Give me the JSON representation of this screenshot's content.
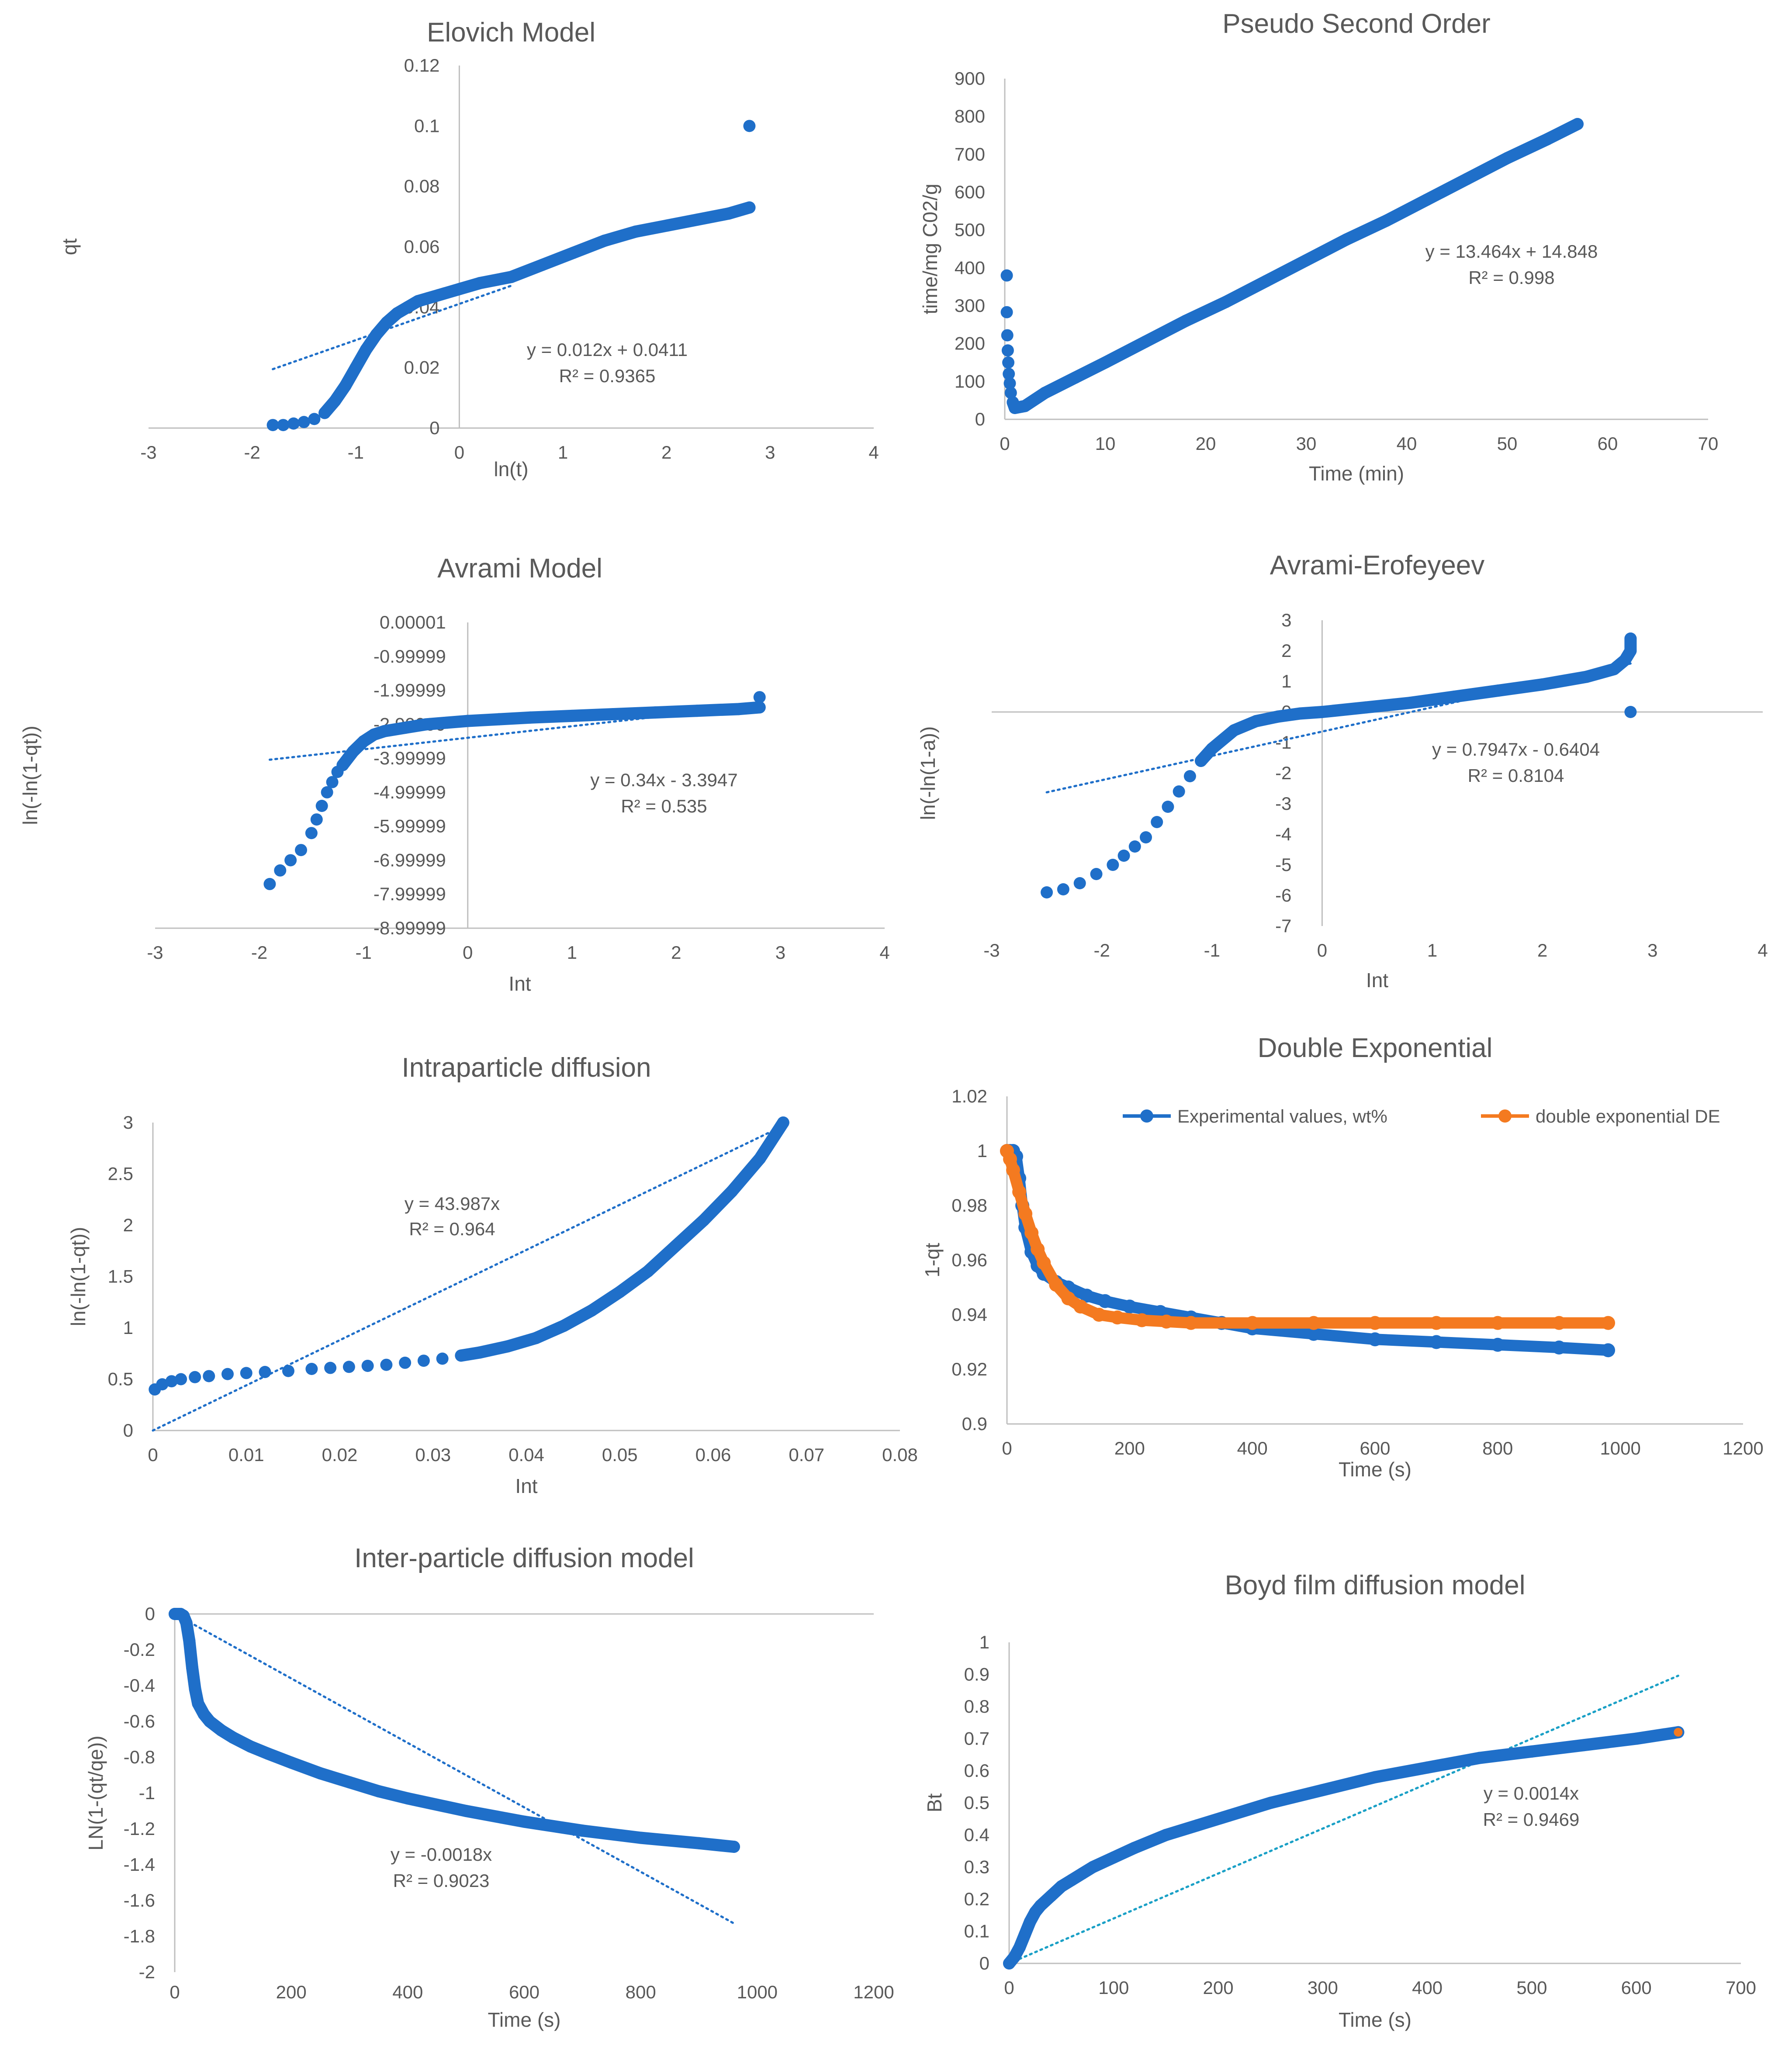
{
  "chart_data": [
    {
      "id": "elovich",
      "type": "scatter",
      "title": "Elovich Model",
      "xlabel": "ln(t)",
      "ylabel": "qt",
      "xlim": [
        -3,
        4
      ],
      "ylim": [
        0,
        0.12
      ],
      "xticks": [
        -3,
        -2,
        -1,
        0,
        1,
        2,
        3,
        4
      ],
      "xtick_labels": [
        "-3",
        "-2",
        "-1",
        "0",
        "1",
        "2",
        "3",
        "4"
      ],
      "yticks": [
        0,
        0.02,
        0.04,
        0.06,
        0.08,
        0.1,
        0.12
      ],
      "ytick_labels": [
        "0",
        "0.02",
        "0.04",
        "0.06",
        "0.08",
        "0.1",
        "0.12"
      ],
      "series": [
        {
          "name": "data",
          "color": "#1f6fc9",
          "x": [
            -1.8,
            -1.7,
            -1.6,
            -1.5,
            -1.4,
            -1.3,
            -1.2,
            -1.1,
            -1.0,
            -0.9,
            -0.8,
            -0.7,
            -0.6,
            -0.5,
            -0.4,
            -0.3,
            -0.2,
            0.0,
            0.2,
            0.5,
            0.8,
            1.1,
            1.4,
            1.7,
            2.0,
            2.3,
            2.6,
            2.8,
            2.8
          ],
          "y": [
            0.001,
            0.001,
            0.0015,
            0.002,
            0.003,
            0.005,
            0.009,
            0.014,
            0.02,
            0.026,
            0.031,
            0.035,
            0.038,
            0.04,
            0.042,
            0.043,
            0.044,
            0.046,
            0.048,
            0.05,
            0.054,
            0.058,
            0.062,
            0.065,
            0.067,
            0.069,
            0.071,
            0.073,
            0.1
          ]
        }
      ],
      "trendline": {
        "slope": 0.012,
        "intercept": 0.0411,
        "x_range": [
          -1.8,
          0.5
        ],
        "color": "#1f6fc9"
      },
      "annotation": [
        "y = 0.012x + 0.0411",
        "R² = 0.9365"
      ]
    },
    {
      "id": "pso",
      "type": "scatter",
      "title": "Pseudo Second Order",
      "xlabel": "Time (min)",
      "ylabel": "time/mg C02/g",
      "xlim": [
        0,
        70
      ],
      "ylim": [
        0,
        900
      ],
      "xticks": [
        0,
        10,
        20,
        30,
        40,
        50,
        60,
        70
      ],
      "xtick_labels": [
        "0",
        "10",
        "20",
        "30",
        "40",
        "50",
        "60",
        "70"
      ],
      "yticks": [
        0,
        100,
        200,
        300,
        400,
        500,
        600,
        700,
        800,
        900
      ],
      "ytick_labels": [
        "0",
        "100",
        "200",
        "300",
        "400",
        "500",
        "600",
        "700",
        "800",
        "900"
      ],
      "series": [
        {
          "name": "data",
          "color": "#1f6fc9",
          "x": [
            0.2,
            0.2,
            0.25,
            0.3,
            0.35,
            0.4,
            0.5,
            0.6,
            0.8,
            1,
            2,
            4,
            7,
            10,
            14,
            18,
            22,
            26,
            30,
            34,
            38,
            42,
            46,
            50,
            54,
            57
          ],
          "y": [
            380,
            283,
            222,
            182,
            150,
            120,
            95,
            70,
            45,
            30,
            35,
            70,
            110,
            150,
            205,
            260,
            310,
            365,
            420,
            475,
            525,
            580,
            635,
            690,
            740,
            780
          ]
        }
      ],
      "trendline": null,
      "annotation": [
        "y = 13.464x + 14.848",
        "R² = 0.998"
      ]
    },
    {
      "id": "avrami",
      "type": "scatter",
      "title": "Avrami Model",
      "xlabel": "Int",
      "ylabel": "ln(-ln(1-qt))",
      "xlim": [
        -3,
        4
      ],
      "ylim": [
        -8.99999,
        1e-05
      ],
      "xticks": [
        -3,
        -2,
        -1,
        0,
        1,
        2,
        3,
        4
      ],
      "xtick_labels": [
        "-3",
        "-2",
        "-1",
        "0",
        "1",
        "2",
        "3",
        "4"
      ],
      "yticks": [
        1e-05,
        -0.99999,
        -1.99999,
        -2.99999,
        -3.99999,
        -4.99999,
        -5.99999,
        -6.99999,
        -7.99999,
        -8.99999
      ],
      "ytick_labels": [
        "0.00001",
        "-0.99999",
        "-1.99999",
        "-2.99999",
        "-3.99999",
        "-4.99999",
        "-5.99999",
        "-6.99999",
        "-7.99999",
        "-8.99999"
      ],
      "series": [
        {
          "name": "data",
          "color": "#1f6fc9",
          "x": [
            -1.9,
            -1.8,
            -1.7,
            -1.6,
            -1.5,
            -1.45,
            -1.4,
            -1.35,
            -1.3,
            -1.25,
            -1.2,
            -1.1,
            -1.0,
            -0.9,
            -0.8,
            -0.6,
            -0.4,
            -0.2,
            0.0,
            0.3,
            0.6,
            1.0,
            1.4,
            1.8,
            2.2,
            2.6,
            2.8,
            2.8
          ],
          "y": [
            -7.7,
            -7.3,
            -7.0,
            -6.7,
            -6.2,
            -5.8,
            -5.4,
            -5.0,
            -4.7,
            -4.4,
            -4.2,
            -3.8,
            -3.5,
            -3.3,
            -3.2,
            -3.1,
            -3.0,
            -2.95,
            -2.9,
            -2.85,
            -2.8,
            -2.75,
            -2.7,
            -2.65,
            -2.6,
            -2.55,
            -2.5,
            -2.2
          ]
        }
      ],
      "trendline": {
        "slope": 0.34,
        "intercept": -3.3947,
        "x_range": [
          -1.9,
          2.8
        ],
        "color": "#1f6fc9"
      },
      "annotation": [
        "y = 0.34x - 3.3947",
        "R² = 0.535"
      ]
    },
    {
      "id": "avrami_erofeyeev",
      "type": "scatter",
      "title": "Avrami-Erofeyeev",
      "xlabel": "Int",
      "ylabel": "ln(-ln(1-a))",
      "xlim": [
        -3,
        4
      ],
      "ylim": [
        -7,
        3
      ],
      "xticks": [
        -3,
        -2,
        -1,
        0,
        1,
        2,
        3,
        4
      ],
      "xtick_labels": [
        "-3",
        "-2",
        "-1",
        "0",
        "1",
        "2",
        "3",
        "4"
      ],
      "yticks": [
        -7,
        -6,
        -5,
        -4,
        -3,
        -2,
        -1,
        0,
        1,
        2,
        3
      ],
      "ytick_labels": [
        "-7",
        "-6",
        "-5",
        "-4",
        "-3",
        "-2",
        "-1",
        "0",
        "1",
        "2",
        "3"
      ],
      "series": [
        {
          "name": "data",
          "color": "#1f6fc9",
          "x": [
            -2.5,
            -2.35,
            -2.2,
            -2.05,
            -1.9,
            -1.8,
            -1.7,
            -1.6,
            -1.5,
            -1.4,
            -1.3,
            -1.2,
            -1.1,
            -1.0,
            -0.8,
            -0.6,
            -0.4,
            -0.2,
            0.0,
            0.4,
            0.8,
            1.2,
            1.6,
            2.0,
            2.4,
            2.65,
            2.75,
            2.8,
            2.8,
            2.8
          ],
          "y": [
            -5.9,
            -5.8,
            -5.6,
            -5.3,
            -5.0,
            -4.7,
            -4.4,
            -4.1,
            -3.6,
            -3.1,
            -2.6,
            -2.1,
            -1.6,
            -1.2,
            -0.6,
            -0.3,
            -0.15,
            -0.05,
            0.0,
            0.15,
            0.3,
            0.5,
            0.7,
            0.9,
            1.15,
            1.4,
            1.7,
            2.0,
            2.4,
            0.0
          ]
        }
      ],
      "trendline": {
        "slope": 0.7947,
        "intercept": -0.6404,
        "x_range": [
          -2.5,
          2.8
        ],
        "color": "#1f6fc9"
      },
      "annotation": [
        "y = 0.7947x - 0.6404",
        "R² = 0.8104"
      ]
    },
    {
      "id": "intraparticle",
      "type": "scatter",
      "title": "Intraparticle diffusion",
      "xlabel": "Int",
      "ylabel": "ln(-ln(1-qt))",
      "xlim": [
        0,
        0.08
      ],
      "ylim": [
        0,
        3
      ],
      "xticks": [
        0,
        0.01,
        0.02,
        0.03,
        0.04,
        0.05,
        0.06,
        0.07,
        0.08
      ],
      "xtick_labels": [
        "0",
        "0.01",
        "0.02",
        "0.03",
        "0.04",
        "0.05",
        "0.06",
        "0.07",
        "0.08"
      ],
      "yticks": [
        0,
        0.5,
        1,
        1.5,
        2,
        2.5,
        3
      ],
      "ytick_labels": [
        "0",
        "0.5",
        "1",
        "1.5",
        "2",
        "2.5",
        "3"
      ],
      "series": [
        {
          "name": "data",
          "color": "#1f6fc9",
          "x": [
            0.0002,
            0.001,
            0.002,
            0.003,
            0.0045,
            0.006,
            0.008,
            0.01,
            0.012,
            0.0145,
            0.017,
            0.019,
            0.021,
            0.023,
            0.025,
            0.027,
            0.029,
            0.031,
            0.033,
            0.035,
            0.038,
            0.041,
            0.044,
            0.047,
            0.05,
            0.053,
            0.056,
            0.059,
            0.062,
            0.065,
            0.0675
          ],
          "y": [
            0.4,
            0.45,
            0.48,
            0.5,
            0.52,
            0.53,
            0.55,
            0.56,
            0.57,
            0.58,
            0.6,
            0.61,
            0.62,
            0.63,
            0.64,
            0.66,
            0.68,
            0.7,
            0.73,
            0.76,
            0.82,
            0.9,
            1.02,
            1.17,
            1.35,
            1.55,
            1.8,
            2.05,
            2.33,
            2.65,
            3.0
          ]
        }
      ],
      "trendline": {
        "slope": 43.987,
        "intercept": 0,
        "x_range": [
          0,
          0.0675
        ],
        "color": "#1f6fc9"
      },
      "annotation": [
        "y = 43.987x",
        "R² = 0.964"
      ]
    },
    {
      "id": "double_exponential",
      "type": "line",
      "title": "Double Exponential",
      "xlabel": "Time (s)",
      "ylabel": "1-qt",
      "xlim": [
        0,
        1200
      ],
      "ylim": [
        0.9,
        1.02
      ],
      "xticks": [
        0,
        200,
        400,
        600,
        800,
        1000,
        1200
      ],
      "xtick_labels": [
        "0",
        "200",
        "400",
        "600",
        "800",
        "1000",
        "1200"
      ],
      "yticks": [
        0.9,
        0.92,
        0.94,
        0.96,
        0.98,
        1,
        1.02
      ],
      "ytick_labels": [
        "0.9",
        "0.92",
        "0.94",
        "0.96",
        "0.98",
        "1",
        "1.02"
      ],
      "legend": "top",
      "series": [
        {
          "name": "Experimental values, wt%",
          "color": "#1f6fc9",
          "x": [
            0,
            5,
            10,
            15,
            20,
            25,
            30,
            40,
            50,
            60,
            80,
            100,
            130,
            160,
            200,
            250,
            300,
            350,
            400,
            500,
            600,
            700,
            800,
            900,
            980
          ],
          "y": [
            1.0,
            1.0,
            1.0,
            0.998,
            0.99,
            0.98,
            0.972,
            0.963,
            0.958,
            0.955,
            0.952,
            0.95,
            0.947,
            0.945,
            0.943,
            0.941,
            0.939,
            0.937,
            0.935,
            0.933,
            0.931,
            0.93,
            0.929,
            0.928,
            0.927
          ]
        },
        {
          "name": "double exponential DE",
          "color": "#f47a20",
          "x": [
            0,
            5,
            10,
            20,
            30,
            40,
            50,
            60,
            80,
            100,
            120,
            150,
            180,
            220,
            260,
            300,
            400,
            500,
            600,
            700,
            800,
            900,
            980
          ],
          "y": [
            1.0,
            0.997,
            0.993,
            0.985,
            0.977,
            0.97,
            0.964,
            0.959,
            0.951,
            0.946,
            0.943,
            0.94,
            0.939,
            0.938,
            0.9375,
            0.937,
            0.937,
            0.937,
            0.937,
            0.937,
            0.937,
            0.937,
            0.937
          ]
        }
      ],
      "trendline": null,
      "annotation": []
    },
    {
      "id": "interparticle",
      "type": "scatter",
      "title": "Inter-particle diffusion model",
      "xlabel": "Time (s)",
      "ylabel": "LN(1-(qt/qe))",
      "xlim": [
        0,
        1200
      ],
      "ylim": [
        -2,
        0
      ],
      "xticks": [
        0,
        200,
        400,
        600,
        800,
        1000,
        1200
      ],
      "xtick_labels": [
        "0",
        "200",
        "400",
        "600",
        "800",
        "1000",
        "1200"
      ],
      "yticks": [
        0,
        -0.2,
        -0.4,
        -0.6,
        -0.8,
        -1,
        -1.2,
        -1.4,
        -1.6,
        -1.8,
        -2
      ],
      "ytick_labels": [
        "0",
        "-0.2",
        "-0.4",
        "-0.6",
        "-0.8",
        "-1",
        "-1.2",
        "-1.4",
        "-1.6",
        "-1.8",
        "-2"
      ],
      "series": [
        {
          "name": "data",
          "color": "#1f6fc9",
          "x": [
            0,
            5,
            10,
            15,
            20,
            25,
            30,
            35,
            40,
            50,
            60,
            80,
            100,
            130,
            160,
            200,
            250,
            300,
            350,
            400,
            500,
            600,
            700,
            800,
            900,
            960
          ],
          "y": [
            0,
            0,
            0,
            -0.01,
            -0.05,
            -0.15,
            -0.3,
            -0.42,
            -0.5,
            -0.56,
            -0.6,
            -0.65,
            -0.69,
            -0.74,
            -0.78,
            -0.83,
            -0.89,
            -0.94,
            -0.99,
            -1.03,
            -1.1,
            -1.16,
            -1.21,
            -1.25,
            -1.28,
            -1.3
          ]
        }
      ],
      "trendline": {
        "slope": -0.0018,
        "intercept": 0,
        "x_range": [
          0,
          960
        ],
        "color": "#1f6fc9"
      },
      "annotation": [
        "y = -0.0018x",
        "R² = 0.9023"
      ]
    },
    {
      "id": "boyd",
      "type": "scatter",
      "title": "Boyd film diffusion model",
      "xlabel": "Time (s)",
      "ylabel": "Bt",
      "xlim": [
        0,
        700
      ],
      "ylim": [
        0,
        1
      ],
      "xticks": [
        0,
        100,
        200,
        300,
        400,
        500,
        600,
        700
      ],
      "xtick_labels": [
        "0",
        "100",
        "200",
        "300",
        "400",
        "500",
        "600",
        "700"
      ],
      "yticks": [
        0,
        0.1,
        0.2,
        0.3,
        0.4,
        0.5,
        0.6,
        0.7,
        0.8,
        0.9,
        1
      ],
      "ytick_labels": [
        "0",
        "0.1",
        "0.2",
        "0.3",
        "0.4",
        "0.5",
        "0.6",
        "0.7",
        "0.8",
        "0.9",
        "1"
      ],
      "series": [
        {
          "name": "data",
          "color": "#1f6fc9",
          "x": [
            0,
            5,
            10,
            15,
            20,
            25,
            30,
            40,
            50,
            60,
            70,
            80,
            100,
            120,
            150,
            180,
            210,
            250,
            300,
            350,
            400,
            450,
            500,
            550,
            600,
            640
          ],
          "y": [
            0,
            0.02,
            0.05,
            0.09,
            0.13,
            0.16,
            0.18,
            0.21,
            0.24,
            0.26,
            0.28,
            0.3,
            0.33,
            0.36,
            0.4,
            0.43,
            0.46,
            0.5,
            0.54,
            0.58,
            0.61,
            0.64,
            0.66,
            0.68,
            0.7,
            0.72
          ]
        }
      ],
      "trendline": {
        "slope": 0.0014,
        "intercept": 0,
        "x_range": [
          0,
          640
        ],
        "color": "#1aa0c6"
      },
      "annotation": [
        "y = 0.0014x",
        "R² = 0.9469"
      ]
    }
  ]
}
